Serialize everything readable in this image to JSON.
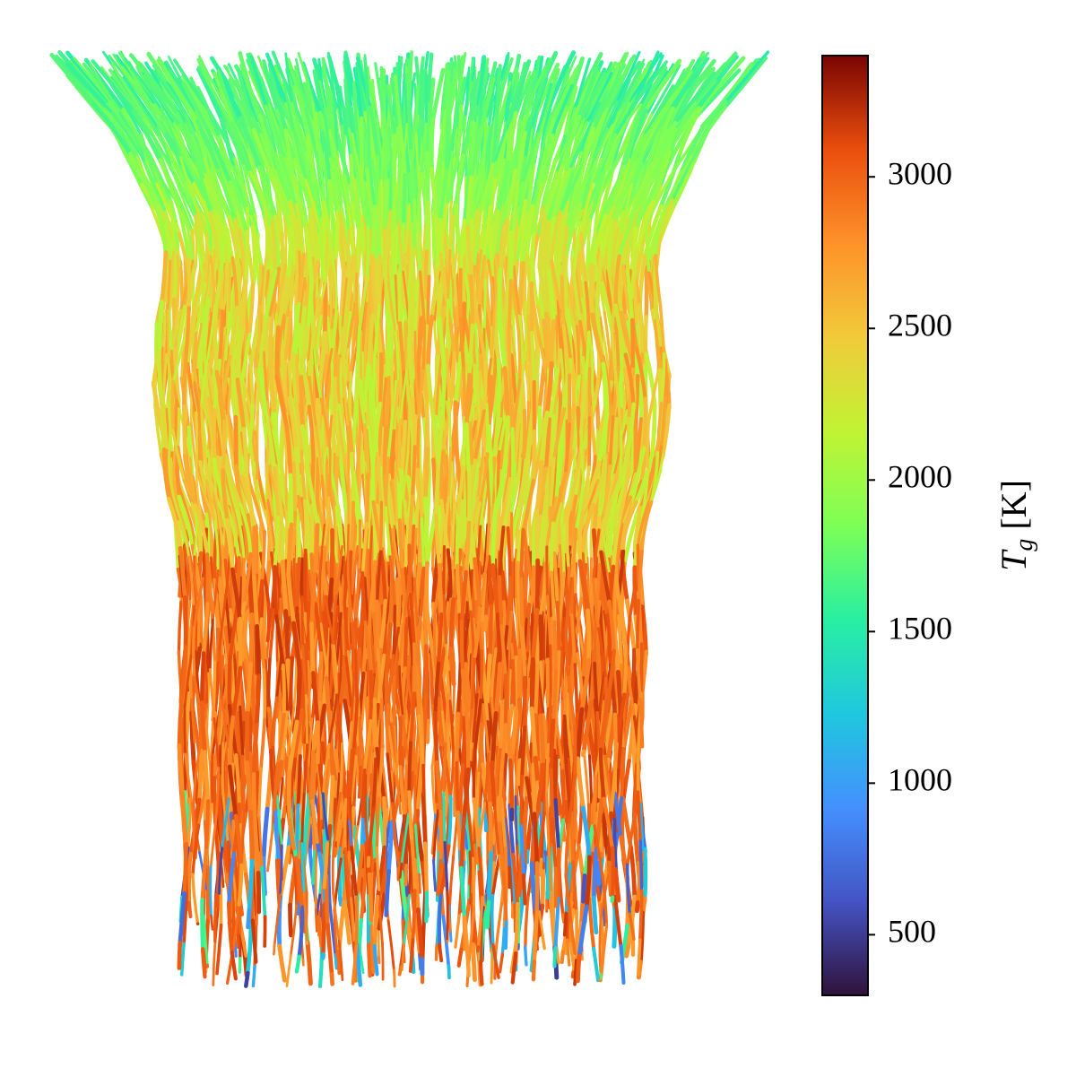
{
  "chart_data": {
    "type": "streamlines",
    "colorbar": {
      "label": {
        "symbol": "T",
        "subscript": "g",
        "unit": "[K]"
      },
      "clim": [
        300,
        3400
      ],
      "ticks": [
        500,
        1000,
        1500,
        2000,
        2500,
        3000
      ],
      "colormap": [
        "#30123b",
        "#4454c4",
        "#4490fe",
        "#1fc8de",
        "#29efa2",
        "#7dff56",
        "#c1f334",
        "#f1ca3a",
        "#fe922a",
        "#ea4f0d",
        "#7a0403"
      ]
    }
  }
}
